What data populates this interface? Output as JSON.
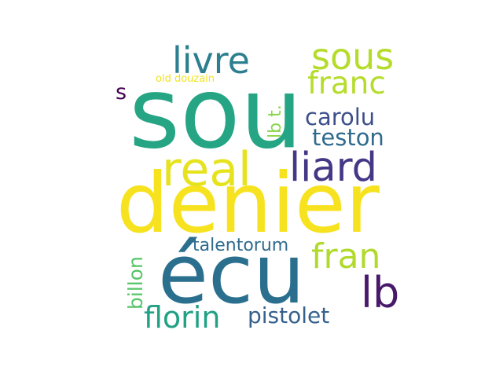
{
  "words": {
    "sou": "sou",
    "denier": "denier",
    "ecu": "écu",
    "real": "real",
    "liard": "liard",
    "livre": "livre",
    "sous": "sous",
    "franc": "franc",
    "fran": "fran",
    "lb": "lb",
    "florin": "florin",
    "pistolet": "pistolet",
    "carolu": "carolu",
    "teston": "teston",
    "talentorum": "talentorum",
    "billon": "billon",
    "lb_t": "lb t.",
    "s": "s",
    "old_douzain": "old douzain"
  },
  "colors": {
    "sou": "#26a585",
    "denier": "#f7e21f",
    "ecu": "#2b6f8e",
    "real": "#e6e31e",
    "liard": "#453786",
    "livre": "#2c7f8e",
    "sous": "#b5dc2b",
    "franc": "#b5dc2b",
    "fran": "#b1da2d",
    "lb": "#48196b",
    "florin": "#22a185",
    "pistolet": "#35618d",
    "carolu": "#3c4f8a",
    "teston": "#2f6b8e",
    "talentorum": "#2f6b8e",
    "billon": "#55c567",
    "lb_t": "#8ad54a",
    "s": "#440154",
    "old_douzain": "#f1e41f"
  }
}
